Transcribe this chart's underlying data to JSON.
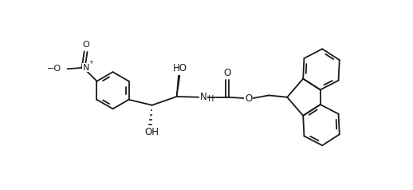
{
  "background": "#ffffff",
  "line_color": "#1a1a1a",
  "lw": 1.3,
  "fs": 8.5,
  "figw": 5.18,
  "figh": 2.38,
  "dpi": 100,
  "xlim": [
    0,
    5.18
  ],
  "ylim": [
    0,
    2.38
  ]
}
